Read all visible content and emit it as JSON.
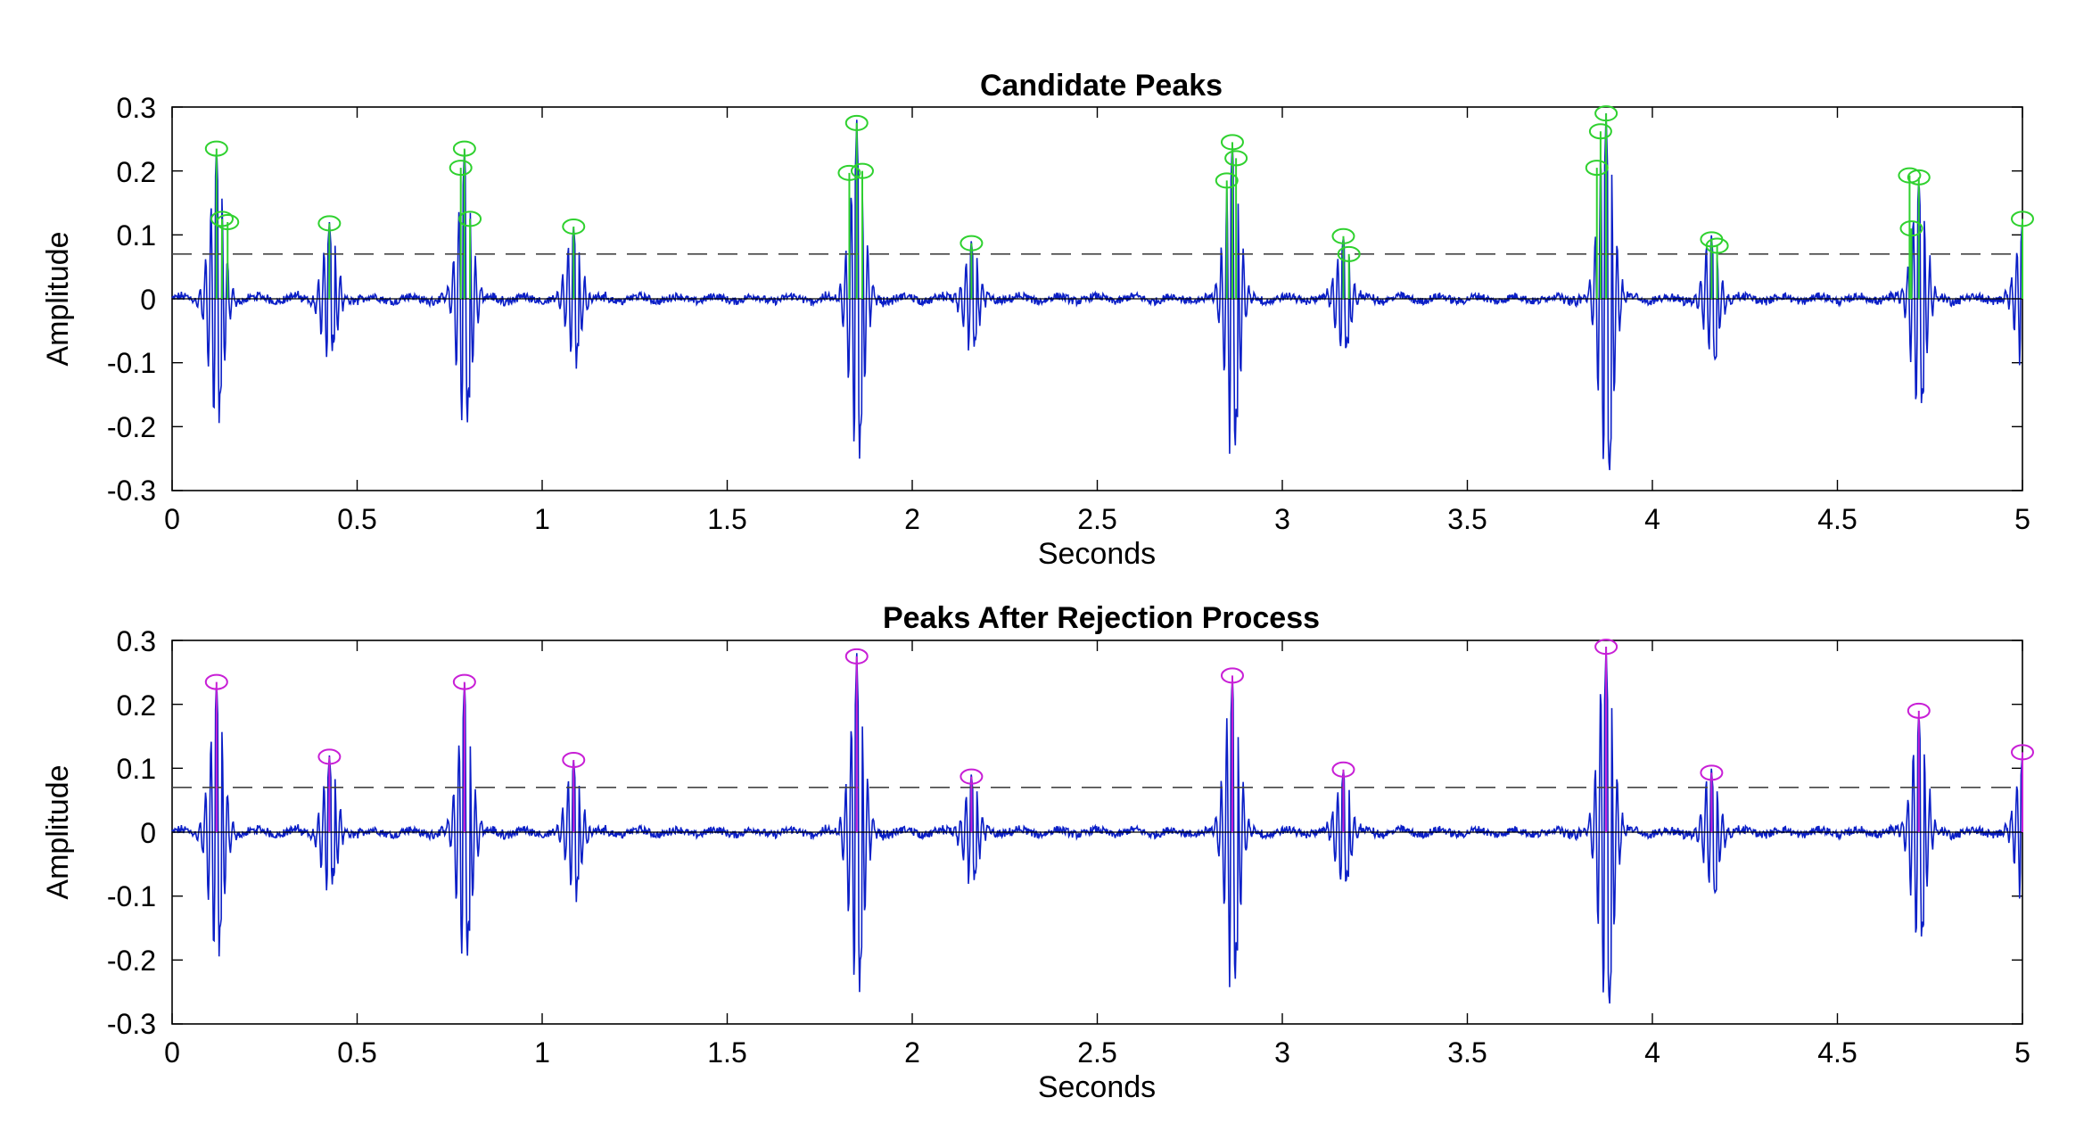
{
  "colors": {
    "signal": "#0b1fc7",
    "candidate_peak": "#2fd12f",
    "accepted_peak": "#c81fd6",
    "threshold": "#444444",
    "axes": "#000000"
  },
  "chart_data": [
    {
      "type": "line",
      "title": "Candidate Peaks",
      "xlabel": "Seconds",
      "ylabel": "Amplitude",
      "xlim": [
        0,
        5
      ],
      "ylim": [
        -0.3,
        0.3
      ],
      "xticks": [
        "0",
        "0.5",
        "1",
        "1.5",
        "2",
        "2.5",
        "3",
        "3.5",
        "4",
        "4.5",
        "5"
      ],
      "yticks": [
        "0.3",
        "0.2",
        "0.1",
        "0",
        "-0.1",
        "-0.2",
        "-0.3"
      ],
      "threshold": 0.07,
      "peak_marker_color": "#2fd12f",
      "peaks": [
        {
          "x": 0.12,
          "y": 0.235
        },
        {
          "x": 0.135,
          "y": 0.125
        },
        {
          "x": 0.15,
          "y": 0.12
        },
        {
          "x": 0.425,
          "y": 0.118
        },
        {
          "x": 0.78,
          "y": 0.205
        },
        {
          "x": 0.79,
          "y": 0.235
        },
        {
          "x": 0.805,
          "y": 0.125
        },
        {
          "x": 1.085,
          "y": 0.113
        },
        {
          "x": 1.83,
          "y": 0.197
        },
        {
          "x": 1.85,
          "y": 0.275
        },
        {
          "x": 1.865,
          "y": 0.2
        },
        {
          "x": 2.16,
          "y": 0.087
        },
        {
          "x": 2.85,
          "y": 0.185
        },
        {
          "x": 2.865,
          "y": 0.245
        },
        {
          "x": 2.875,
          "y": 0.22
        },
        {
          "x": 3.165,
          "y": 0.098
        },
        {
          "x": 3.18,
          "y": 0.07
        },
        {
          "x": 3.85,
          "y": 0.205
        },
        {
          "x": 3.86,
          "y": 0.262
        },
        {
          "x": 3.875,
          "y": 0.29
        },
        {
          "x": 4.16,
          "y": 0.093
        },
        {
          "x": 4.175,
          "y": 0.083
        },
        {
          "x": 4.695,
          "y": 0.193
        },
        {
          "x": 4.7,
          "y": 0.11
        },
        {
          "x": 4.72,
          "y": 0.19
        },
        {
          "x": 5.0,
          "y": 0.125
        }
      ]
    },
    {
      "type": "line",
      "title": "Peaks After Rejection Process",
      "xlabel": "Seconds",
      "ylabel": "Amplitude",
      "xlim": [
        0,
        5
      ],
      "ylim": [
        -0.3,
        0.3
      ],
      "xticks": [
        "0",
        "0.5",
        "1",
        "1.5",
        "2",
        "2.5",
        "3",
        "3.5",
        "4",
        "4.5",
        "5"
      ],
      "yticks": [
        "0.3",
        "0.2",
        "0.1",
        "0",
        "-0.1",
        "-0.2",
        "-0.3"
      ],
      "threshold": 0.07,
      "peak_marker_color": "#c81fd6",
      "peaks": [
        {
          "x": 0.12,
          "y": 0.235
        },
        {
          "x": 0.425,
          "y": 0.118
        },
        {
          "x": 0.79,
          "y": 0.235
        },
        {
          "x": 1.085,
          "y": 0.113
        },
        {
          "x": 1.85,
          "y": 0.275
        },
        {
          "x": 2.16,
          "y": 0.087
        },
        {
          "x": 2.865,
          "y": 0.245
        },
        {
          "x": 3.165,
          "y": 0.098
        },
        {
          "x": 3.875,
          "y": 0.29
        },
        {
          "x": 4.16,
          "y": 0.093
        },
        {
          "x": 4.72,
          "y": 0.19
        },
        {
          "x": 5.0,
          "y": 0.125
        }
      ]
    }
  ],
  "signal_events": [
    {
      "t": 0.12,
      "amp": 0.24,
      "neg": -0.15
    },
    {
      "t": 0.425,
      "amp": 0.12,
      "neg": -0.07
    },
    {
      "t": 0.79,
      "amp": 0.24,
      "neg": -0.16
    },
    {
      "t": 1.085,
      "amp": 0.115,
      "neg": -0.085
    },
    {
      "t": 1.85,
      "amp": 0.28,
      "neg": -0.21
    },
    {
      "t": 2.16,
      "amp": 0.09,
      "neg": -0.065
    },
    {
      "t": 2.865,
      "amp": 0.25,
      "neg": -0.21
    },
    {
      "t": 3.165,
      "amp": 0.1,
      "neg": -0.07
    },
    {
      "t": 3.875,
      "amp": 0.29,
      "neg": -0.27
    },
    {
      "t": 4.16,
      "amp": 0.095,
      "neg": -0.095
    },
    {
      "t": 4.72,
      "amp": 0.19,
      "neg": -0.155
    },
    {
      "t": 5.0,
      "amp": 0.125,
      "neg": -0.07
    }
  ]
}
